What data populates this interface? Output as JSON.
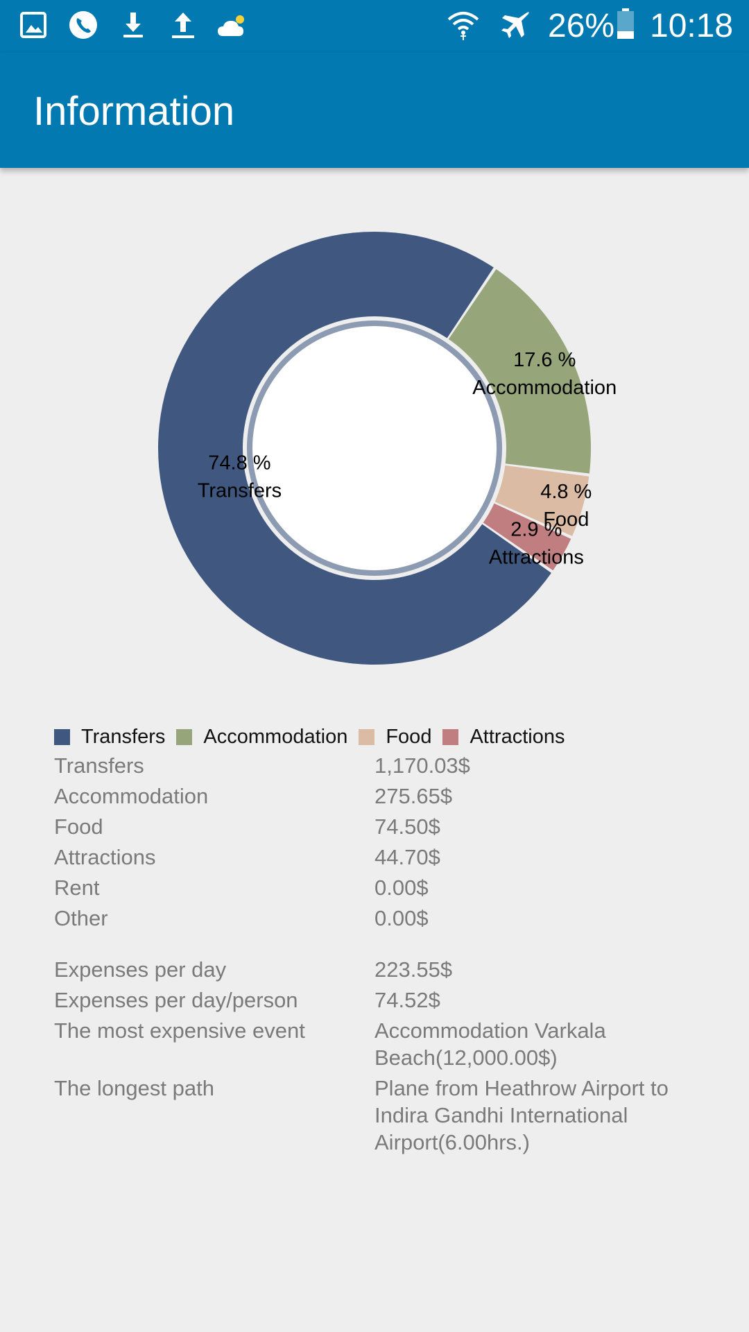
{
  "status_bar": {
    "battery": "26%",
    "time": "10:18",
    "icons": [
      "gallery-icon",
      "phone-icon",
      "download-icon",
      "upload-icon",
      "weather-icon",
      "wifi-icon",
      "airplane-mode-icon",
      "battery-icon"
    ]
  },
  "app_bar": {
    "title": "Information"
  },
  "chart_data": {
    "type": "pie",
    "donut": true,
    "categories": [
      "Transfers",
      "Accommodation",
      "Food",
      "Attractions"
    ],
    "values": [
      74.8,
      17.6,
      4.8,
      2.9
    ],
    "value_labels": [
      "74.8 %",
      "17.6 %",
      "4.8 %",
      "2.9 %"
    ],
    "colors": [
      "#40587f",
      "#96a67a",
      "#dcbba4",
      "#c07e80"
    ],
    "legend": "bottom-left"
  },
  "legend": [
    {
      "label": "Transfers",
      "color": "#40587f"
    },
    {
      "label": "Accommodation",
      "color": "#96a67a"
    },
    {
      "label": "Food",
      "color": "#dcbba4"
    },
    {
      "label": "Attractions",
      "color": "#c07e80"
    }
  ],
  "expenses": [
    {
      "label": "Transfers",
      "value": "1,170.03$"
    },
    {
      "label": "Accommodation",
      "value": "275.65$"
    },
    {
      "label": "Food",
      "value": "74.50$"
    },
    {
      "label": "Attractions",
      "value": "44.70$"
    },
    {
      "label": "Rent",
      "value": "0.00$"
    },
    {
      "label": "Other",
      "value": "0.00$"
    }
  ],
  "stats": [
    {
      "label": "Expenses per day",
      "value": "223.55$"
    },
    {
      "label": "Expenses per day/person",
      "value": "74.52$"
    },
    {
      "label": "The most expensive event",
      "value_lines": [
        "Accommodation Varkala",
        "Beach(12,000.00$)"
      ]
    },
    {
      "label": "The longest path",
      "value_lines": [
        "Plane from Heathrow Airport to",
        "Indira Gandhi International",
        "Airport(6.00hrs.)"
      ]
    }
  ]
}
